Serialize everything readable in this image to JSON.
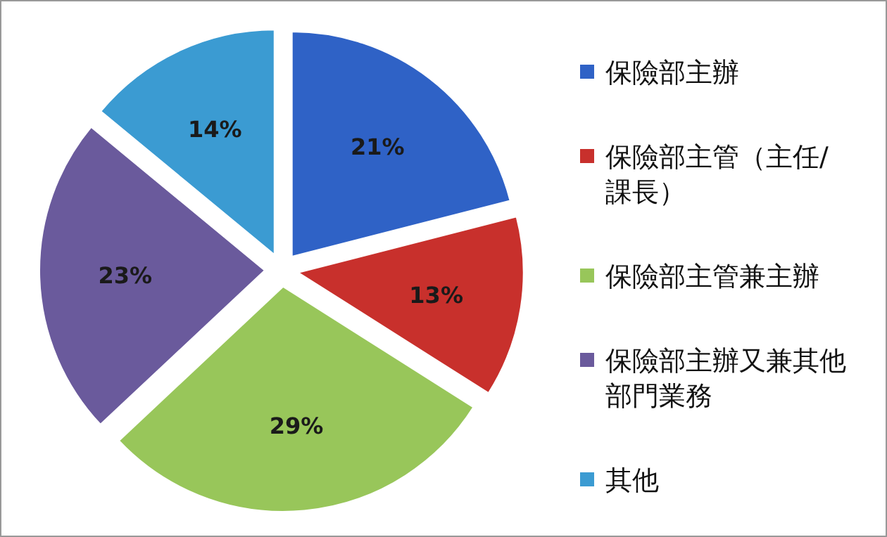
{
  "chart_data": {
    "type": "pie",
    "categories": [
      "保險部主辦",
      "保險部主管（主任/課長）",
      "保險部主管兼主辦",
      "保險部主辦又兼其他部門業務",
      "其他"
    ],
    "values": [
      21,
      13,
      29,
      23,
      14
    ],
    "value_labels": [
      "21%",
      "13%",
      "29%",
      "23%",
      "14%"
    ],
    "colors": [
      "#2f62c6",
      "#c8302c",
      "#98c65a",
      "#6a5a9c",
      "#3b9bd2"
    ],
    "legend": "right"
  }
}
